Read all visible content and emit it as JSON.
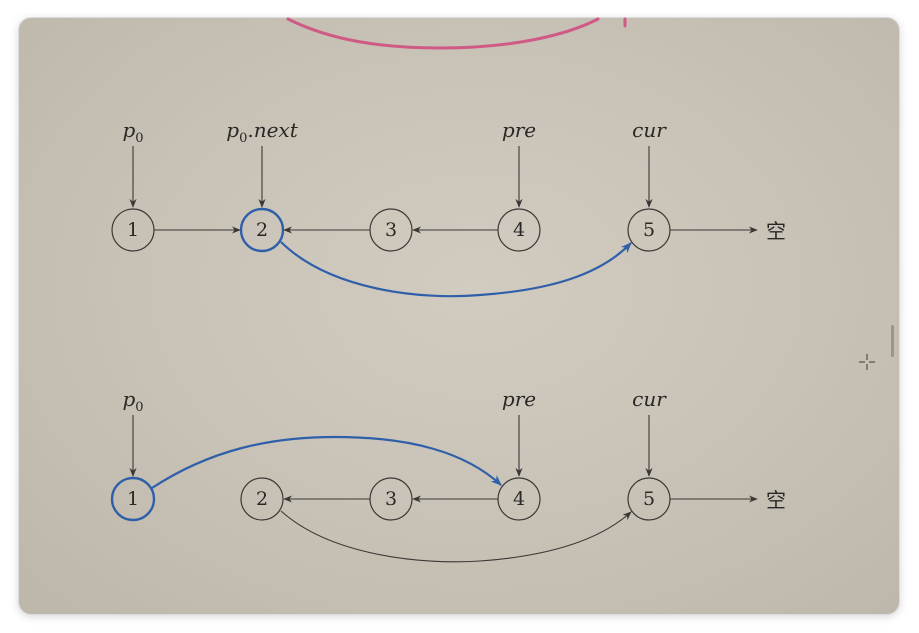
{
  "diagram": {
    "row1": {
      "nodes": [
        "1",
        "2",
        "3",
        "4",
        "5"
      ],
      "pointers": {
        "p0": "p",
        "p0_sub": "0",
        "p0next_var": "p",
        "p0next_sub": "0",
        "p0next_suffix": ".",
        "p0next_field": "next",
        "pre": "pre",
        "cur": "cur"
      },
      "null_label": "空",
      "highlight_color": "#2f5fa8"
    },
    "row2": {
      "nodes": [
        "1",
        "2",
        "3",
        "4",
        "5"
      ],
      "pointers": {
        "p0": "p",
        "p0_sub": "0",
        "pre": "pre",
        "cur": "cur"
      },
      "null_label": "空",
      "highlight_color": "#2f5fa8"
    },
    "annotation_color": "#d05a86"
  }
}
